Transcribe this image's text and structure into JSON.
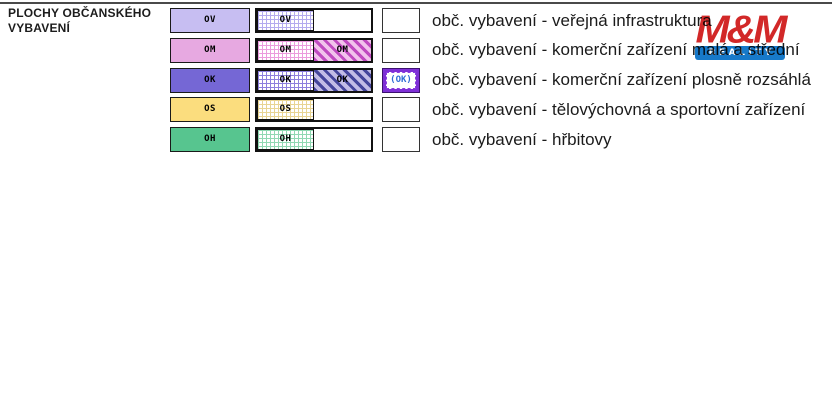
{
  "page": {
    "title_line1": "PLOCHY OBČANSKÉHO",
    "title_line2": "VYBAVENÍ"
  },
  "legend": {
    "rows": [
      {
        "code": "OV",
        "label": "obč. vybavení - veřejná infrastruktura",
        "solid_color": "#c7bef2",
        "grid_color": "#b4abee",
        "stripe": null,
        "special_code": null
      },
      {
        "code": "OM",
        "label": "obč. vybavení - komerční zařízení malá a střední",
        "solid_color": "#e7a9e1",
        "grid_color": "#eb9cdd",
        "stripe": {
          "bg_color": "#f2c3ec",
          "stripe_color": "#c04ac0"
        },
        "special_code": null
      },
      {
        "code": "OK",
        "label": "obč. vybavení - komerční zařízení plosně rozsáhlá",
        "solid_color": "#7567d5",
        "grid_color": "#8d7fdd",
        "stripe": {
          "bg_color": "#c2bce6",
          "stripe_color": "#45459c"
        },
        "special_code": "(OK)"
      },
      {
        "code": "OS",
        "label": "obč. vybavení - tělovýchovná a sportovní zařízení",
        "solid_color": "#fbdd7e",
        "grid_color": "#e8d493",
        "stripe": null,
        "special_code": null
      },
      {
        "code": "OH",
        "label": "obč. vybavení - hřbitovy",
        "solid_color": "#57c58f",
        "grid_color": "#90d8b2",
        "stripe": null,
        "special_code": null
      }
    ]
  },
  "logo": {
    "wordmark": "M&M",
    "bar_text": "REALITY",
    "red": "#d22828",
    "blue": "#1779c9"
  }
}
